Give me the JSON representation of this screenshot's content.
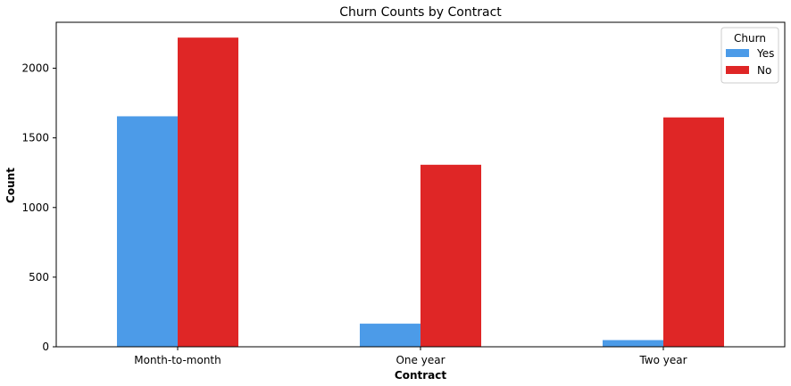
{
  "chart_data": {
    "type": "bar",
    "title": "Churn Counts by Contract",
    "xlabel": "Contract",
    "ylabel": "Count",
    "categories": [
      "Month-to-month",
      "One year",
      "Two year"
    ],
    "series": [
      {
        "name": "Yes",
        "color": "#4c9be8",
        "values": [
          1655,
          166,
          48
        ]
      },
      {
        "name": "No",
        "color": "#df2626",
        "values": [
          2220,
          1307,
          1647
        ]
      }
    ],
    "ylim": [
      0,
      2330
    ],
    "yticks": [
      0,
      500,
      1000,
      1500,
      2000
    ],
    "grid": false,
    "legend": {
      "title": "Churn",
      "placement": "top-right"
    }
  }
}
